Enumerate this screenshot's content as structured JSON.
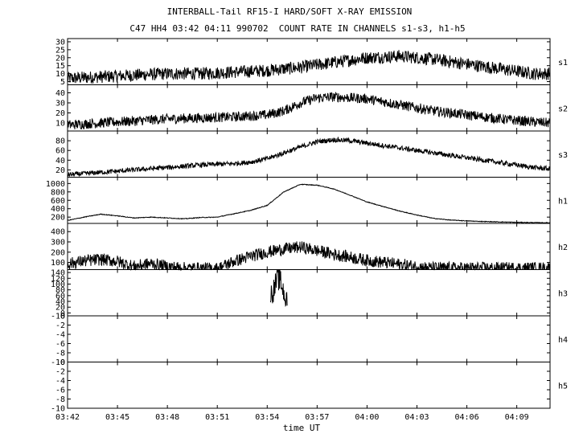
{
  "chart_data": {
    "type": "line",
    "title": "INTERBALL-Tail RF15-I HARD/SOFT X-RAY EMISSION",
    "subtitle": "C47 HH4 03:42 04:11 990702  COUNT RATE IN CHANNELS s1-s3, h1-h5",
    "xlabel": "time UT",
    "x_ticks": [
      "03:42",
      "03:45",
      "03:48",
      "03:51",
      "03:54",
      "03:57",
      "04:00",
      "04:03",
      "04:06",
      "04:09"
    ],
    "x_range_minutes": [
      0,
      29
    ],
    "panels": [
      {
        "name": "s1",
        "ylim": [
          3,
          32
        ],
        "y_ticks": [
          5,
          10,
          15,
          20,
          25,
          30
        ],
        "x": [
          0,
          2,
          4,
          6,
          8,
          10,
          12,
          14,
          16,
          18,
          20,
          22,
          24,
          26,
          28,
          29
        ],
        "y": [
          7,
          8,
          9,
          10,
          10,
          11,
          12,
          14,
          17,
          20,
          21,
          19,
          16,
          13,
          10,
          10
        ],
        "noise": 4
      },
      {
        "name": "s2",
        "ylim": [
          2,
          48
        ],
        "y_ticks": [
          10,
          20,
          30,
          40
        ],
        "x": [
          0,
          2,
          4,
          6,
          8,
          10,
          12,
          13,
          14,
          15,
          16,
          18,
          20,
          22,
          24,
          26,
          28,
          29
        ],
        "y": [
          8,
          10,
          12,
          14,
          15,
          16,
          18,
          22,
          30,
          35,
          36,
          34,
          28,
          22,
          18,
          14,
          11,
          10
        ],
        "noise": 5
      },
      {
        "name": "s3",
        "ylim": [
          5,
          100
        ],
        "y_ticks": [
          20,
          40,
          60,
          80
        ],
        "x": [
          0,
          2,
          4,
          6,
          8,
          10,
          11,
          12,
          13,
          14,
          15,
          16,
          17,
          18,
          20,
          22,
          24,
          26,
          28,
          29
        ],
        "y": [
          10,
          15,
          20,
          25,
          30,
          33,
          36,
          43,
          55,
          67,
          78,
          82,
          80,
          75,
          65,
          55,
          45,
          35,
          25,
          22
        ],
        "noise": 5
      },
      {
        "name": "h1",
        "ylim": [
          50,
          1150
        ],
        "y_ticks": [
          200,
          400,
          600,
          800,
          1000
        ],
        "x": [
          0,
          1,
          2,
          3,
          4,
          5,
          6,
          7,
          8,
          9,
          10,
          11,
          12,
          13,
          14,
          15,
          16,
          17,
          18,
          19,
          20,
          21,
          22,
          23,
          24,
          25,
          26,
          27,
          28,
          29
        ],
        "y": [
          120,
          200,
          270,
          230,
          180,
          200,
          180,
          160,
          190,
          200,
          280,
          360,
          480,
          800,
          980,
          960,
          870,
          720,
          560,
          450,
          340,
          250,
          170,
          130,
          110,
          95,
          85,
          75,
          70,
          65
        ],
        "noise": 8
      },
      {
        "name": "h2",
        "ylim": [
          30,
          480
        ],
        "y_ticks": [
          100,
          200,
          300,
          400
        ],
        "x": [
          0,
          1,
          2,
          3,
          4,
          5,
          6,
          7,
          8,
          9,
          10,
          11,
          12,
          13,
          14,
          15,
          16,
          17,
          18,
          19,
          20,
          21,
          21.5,
          22,
          29
        ],
        "y": [
          85,
          115,
          130,
          110,
          60,
          90,
          60,
          45,
          42,
          40,
          110,
          160,
          200,
          230,
          250,
          215,
          180,
          150,
          120,
          100,
          80,
          60,
          50,
          45,
          45
        ],
        "noise": 60
      },
      {
        "name": "h3",
        "ylim": [
          -10,
          150
        ],
        "y_ticks": [
          -10,
          0,
          20,
          40,
          60,
          80,
          100,
          120,
          140
        ],
        "x": [
          12.2,
          12.4,
          12.6,
          12.8,
          13.0,
          13.2
        ],
        "y": [
          60,
          80,
          120,
          110,
          70,
          30
        ],
        "noise": 40
      },
      {
        "name": "h4",
        "ylim": [
          -10,
          0
        ],
        "y_ticks": [
          -10,
          -8,
          -6,
          -4,
          -2,
          0
        ],
        "x": [],
        "y": [],
        "noise": 0
      },
      {
        "name": "h5",
        "ylim": [
          -10,
          0
        ],
        "y_ticks": [
          -10,
          -8,
          -6,
          -4,
          -2,
          0
        ],
        "x": [],
        "y": [],
        "noise": 0
      }
    ]
  }
}
